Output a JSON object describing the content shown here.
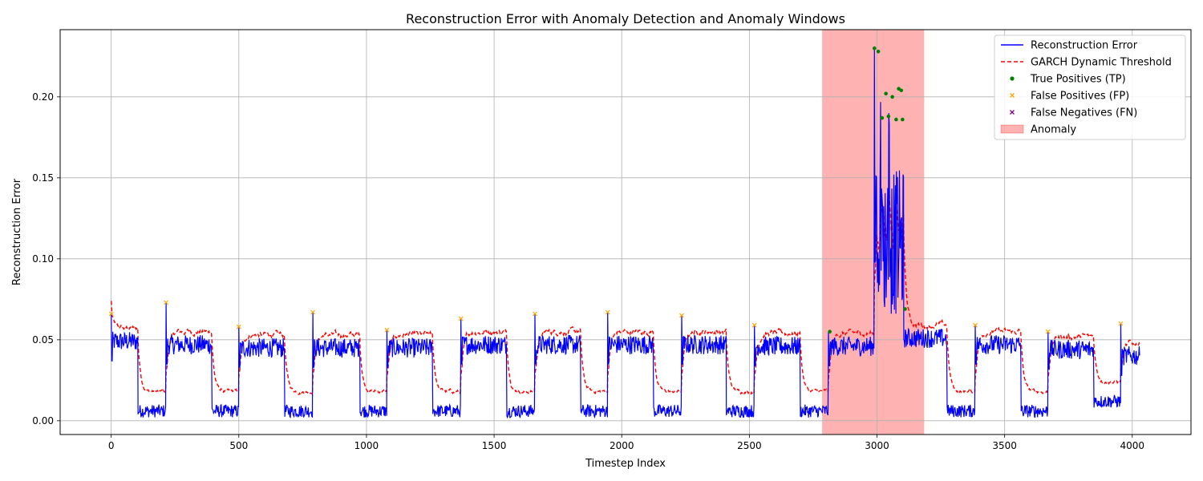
{
  "chart_data": {
    "type": "line",
    "title": "Reconstruction Error with Anomaly Detection and Anomaly Windows",
    "xlabel": "Timestep Index",
    "ylabel": "Reconstruction Error",
    "xlim": [
      -200,
      4230
    ],
    "ylim": [
      -0.0085,
      0.2415
    ],
    "xticks": [
      0,
      500,
      1000,
      1500,
      2000,
      2500,
      3000,
      3500,
      4000
    ],
    "xtick_labels": [
      "0",
      "500",
      "1000",
      "1500",
      "2000",
      "2500",
      "3000",
      "3500",
      "4000"
    ],
    "yticks": [
      0.0,
      0.05,
      0.1,
      0.15,
      0.2
    ],
    "ytick_labels": [
      "0.00",
      "0.05",
      "0.10",
      "0.15",
      "0.20"
    ],
    "grid": true,
    "legend_position": "top-right",
    "series": [
      {
        "name": "Reconstruction Error",
        "style": "solid",
        "color": "#0000ff",
        "segments": [
          {
            "x_start": 0,
            "x_end": 105,
            "level": 0.049,
            "spike": 0.066
          },
          {
            "x_start": 105,
            "x_end": 215,
            "level": 0.006
          },
          {
            "x_start": 215,
            "x_end": 395,
            "level": 0.047,
            "spike": 0.073
          },
          {
            "x_start": 395,
            "x_end": 500,
            "level": 0.006
          },
          {
            "x_start": 500,
            "x_end": 680,
            "level": 0.045,
            "spike": 0.058
          },
          {
            "x_start": 680,
            "x_end": 790,
            "level": 0.006
          },
          {
            "x_start": 790,
            "x_end": 975,
            "level": 0.045,
            "spike": 0.067
          },
          {
            "x_start": 975,
            "x_end": 1080,
            "level": 0.006
          },
          {
            "x_start": 1080,
            "x_end": 1260,
            "level": 0.045,
            "spike": 0.056
          },
          {
            "x_start": 1260,
            "x_end": 1370,
            "level": 0.006
          },
          {
            "x_start": 1370,
            "x_end": 1550,
            "level": 0.047,
            "spike": 0.063
          },
          {
            "x_start": 1550,
            "x_end": 1660,
            "level": 0.006
          },
          {
            "x_start": 1660,
            "x_end": 1840,
            "level": 0.047,
            "spike": 0.066
          },
          {
            "x_start": 1840,
            "x_end": 1945,
            "level": 0.006
          },
          {
            "x_start": 1945,
            "x_end": 2125,
            "level": 0.047,
            "spike": 0.067
          },
          {
            "x_start": 2125,
            "x_end": 2235,
            "level": 0.006
          },
          {
            "x_start": 2235,
            "x_end": 2410,
            "level": 0.047,
            "spike": 0.065
          },
          {
            "x_start": 2410,
            "x_end": 2520,
            "level": 0.006
          },
          {
            "x_start": 2520,
            "x_end": 2700,
            "level": 0.046,
            "spike": 0.059
          },
          {
            "x_start": 2700,
            "x_end": 2810,
            "level": 0.006
          },
          {
            "x_start": 2810,
            "x_end": 2990,
            "level": 0.046,
            "spike": 0.055
          },
          {
            "x_start": 2990,
            "x_end": 3105,
            "level": 0.11,
            "spike": 0.23
          },
          {
            "x_start": 3105,
            "x_end": 3275,
            "level": 0.051
          },
          {
            "x_start": 3275,
            "x_end": 3385,
            "level": 0.006
          },
          {
            "x_start": 3385,
            "x_end": 3565,
            "level": 0.047,
            "spike": 0.059
          },
          {
            "x_start": 3565,
            "x_end": 3670,
            "level": 0.006
          },
          {
            "x_start": 3670,
            "x_end": 3850,
            "level": 0.044,
            "spike": 0.055
          },
          {
            "x_start": 3850,
            "x_end": 3955,
            "level": 0.012
          },
          {
            "x_start": 3955,
            "x_end": 4030,
            "level": 0.04,
            "spike": 0.06
          }
        ]
      },
      {
        "name": "GARCH Dynamic Threshold",
        "style": "dashed",
        "color": "#ff0000",
        "offset_high": 0.008,
        "offset_low": 0.012
      },
      {
        "name": "True Positives (TP)",
        "style": "marker-circle",
        "color": "#008000",
        "points": [
          [
            2990,
            0.23
          ],
          [
            3005,
            0.228
          ],
          [
            3020,
            0.187
          ],
          [
            3035,
            0.202
          ],
          [
            3045,
            0.188
          ],
          [
            3060,
            0.2
          ],
          [
            3075,
            0.186
          ],
          [
            3085,
            0.205
          ],
          [
            3095,
            0.204
          ],
          [
            3100,
            0.186
          ],
          [
            3110,
            0.069
          ],
          [
            2815,
            0.055
          ]
        ]
      },
      {
        "name": "False Positives (FP)",
        "style": "marker-x",
        "color": "#ffa500",
        "points": [
          [
            0,
            0.066
          ],
          [
            215,
            0.073
          ],
          [
            500,
            0.058
          ],
          [
            790,
            0.067
          ],
          [
            1080,
            0.056
          ],
          [
            1370,
            0.063
          ],
          [
            1660,
            0.066
          ],
          [
            1945,
            0.067
          ],
          [
            2235,
            0.065
          ],
          [
            2520,
            0.059
          ],
          [
            3385,
            0.059
          ],
          [
            3670,
            0.055
          ],
          [
            3955,
            0.06
          ]
        ]
      },
      {
        "name": "False Negatives (FN)",
        "style": "marker-x",
        "color": "#800080",
        "points": []
      }
    ],
    "anomaly_windows": [
      {
        "name": "Anomaly",
        "x_start": 2785,
        "x_end": 3185,
        "color": "#ff0000",
        "alpha": 0.3
      }
    ],
    "legend": [
      {
        "label": "Reconstruction Error",
        "kind": "line-solid",
        "color": "#0000ff"
      },
      {
        "label": "GARCH Dynamic Threshold",
        "kind": "line-dashed",
        "color": "#ff0000"
      },
      {
        "label": "True Positives (TP)",
        "kind": "dot",
        "color": "#008000"
      },
      {
        "label": "False Positives (FP)",
        "kind": "x",
        "color": "#ffa500"
      },
      {
        "label": "False Negatives (FN)",
        "kind": "x",
        "color": "#800080"
      },
      {
        "label": "Anomaly",
        "kind": "patch",
        "color": "#ff0000"
      }
    ]
  }
}
